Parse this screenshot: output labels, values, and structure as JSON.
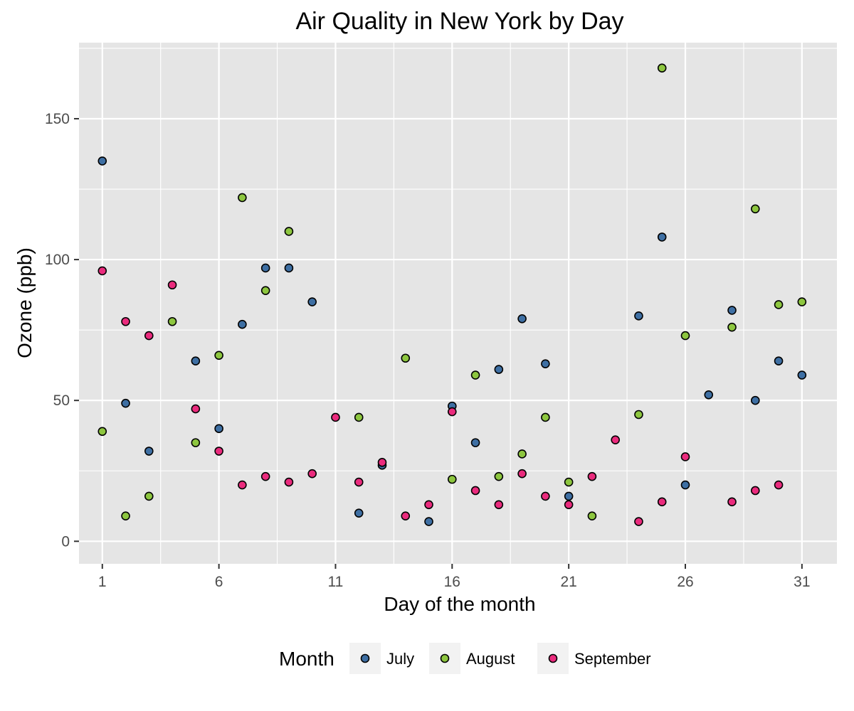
{
  "chart_data": {
    "type": "scatter",
    "title": "Air Quality in New York by Day",
    "xlabel": "Day of the month",
    "ylabel": "Ozone (ppb)",
    "xlim": [
      0,
      32.5
    ],
    "ylim": [
      -8,
      177
    ],
    "x_ticks": [
      1,
      6,
      11,
      16,
      21,
      26,
      31
    ],
    "x_minor_ticks": [
      3.5,
      8.5,
      13.5,
      18.5,
      23.5,
      28.5
    ],
    "y_ticks": [
      0,
      50,
      100,
      150
    ],
    "y_minor_ticks": [
      25,
      75,
      125,
      175
    ],
    "x_tick_labels": [
      "1",
      "6",
      "11",
      "16",
      "21",
      "26",
      "31"
    ],
    "y_tick_labels": [
      "0",
      "50",
      "100",
      "150"
    ],
    "grid": true,
    "legend": {
      "title": "Month",
      "position": "bottom"
    },
    "series": [
      {
        "name": "July",
        "color": "#3e6fa3",
        "points": [
          [
            1,
            135
          ],
          [
            2,
            49
          ],
          [
            3,
            32
          ],
          [
            5,
            64
          ],
          [
            6,
            40
          ],
          [
            7,
            77
          ],
          [
            8,
            97
          ],
          [
            9,
            97
          ],
          [
            10,
            85
          ],
          [
            12,
            10
          ],
          [
            13,
            27
          ],
          [
            15,
            7
          ],
          [
            16,
            48
          ],
          [
            17,
            35
          ],
          [
            18,
            61
          ],
          [
            19,
            79
          ],
          [
            20,
            63
          ],
          [
            21,
            16
          ],
          [
            24,
            80
          ],
          [
            25,
            108
          ],
          [
            26,
            20
          ],
          [
            27,
            52
          ],
          [
            28,
            82
          ],
          [
            29,
            50
          ],
          [
            30,
            64
          ],
          [
            31,
            59
          ]
        ]
      },
      {
        "name": "August",
        "color": "#8dc63f",
        "points": [
          [
            1,
            39
          ],
          [
            2,
            9
          ],
          [
            3,
            16
          ],
          [
            4,
            78
          ],
          [
            5,
            35
          ],
          [
            6,
            66
          ],
          [
            7,
            122
          ],
          [
            8,
            89
          ],
          [
            9,
            110
          ],
          [
            12,
            44
          ],
          [
            14,
            65
          ],
          [
            16,
            22
          ],
          [
            17,
            59
          ],
          [
            18,
            23
          ],
          [
            19,
            31
          ],
          [
            20,
            44
          ],
          [
            21,
            21
          ],
          [
            22,
            9
          ],
          [
            24,
            45
          ],
          [
            25,
            168
          ],
          [
            26,
            73
          ],
          [
            28,
            76
          ],
          [
            29,
            118
          ],
          [
            30,
            84
          ],
          [
            31,
            85
          ]
        ]
      },
      {
        "name": "September",
        "color": "#ea2b7d",
        "points": [
          [
            1,
            96
          ],
          [
            2,
            78
          ],
          [
            3,
            73
          ],
          [
            4,
            91
          ],
          [
            5,
            47
          ],
          [
            6,
            32
          ],
          [
            7,
            20
          ],
          [
            8,
            23
          ],
          [
            9,
            21
          ],
          [
            10,
            24
          ],
          [
            11,
            44
          ],
          [
            12,
            21
          ],
          [
            13,
            28
          ],
          [
            14,
            9
          ],
          [
            15,
            13
          ],
          [
            16,
            46
          ],
          [
            17,
            18
          ],
          [
            18,
            13
          ],
          [
            19,
            24
          ],
          [
            20,
            16
          ],
          [
            21,
            13
          ],
          [
            22,
            23
          ],
          [
            23,
            36
          ],
          [
            24,
            7
          ],
          [
            25,
            14
          ],
          [
            26,
            30
          ],
          [
            28,
            14
          ],
          [
            29,
            18
          ],
          [
            30,
            20
          ]
        ]
      }
    ]
  }
}
